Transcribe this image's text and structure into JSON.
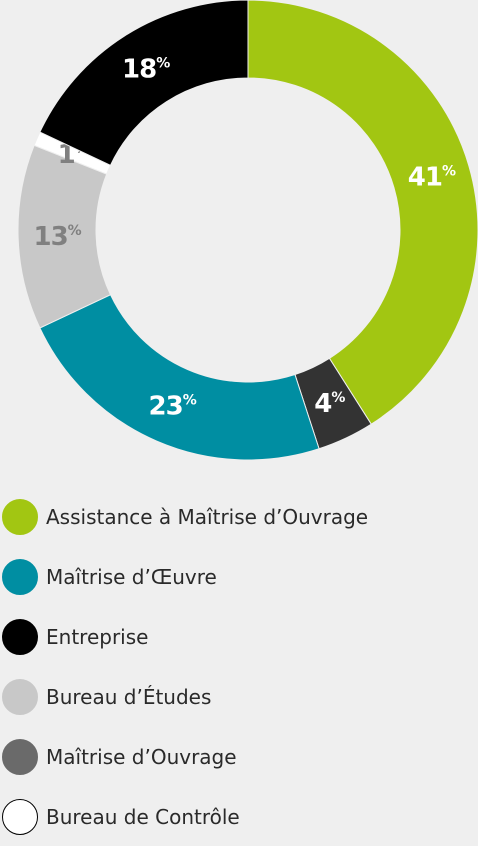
{
  "chart_data": {
    "type": "pie",
    "title": "",
    "categories": [
      "Assistance à Maîtrise d’Ouvrage",
      "Maîtrise d’Œuvre",
      "Entreprise",
      "Bureau d’Études",
      "Maîtrise d’Ouvrage",
      "Bureau de Contrôle"
    ],
    "slices": [
      {
        "name": "Assistance à Maîtrise d’Ouvrage",
        "value": 41,
        "label": "41",
        "unit": "%",
        "color": "#a2c612",
        "label_color": "#ffffff"
      },
      {
        "name": "Maîtrise d’Ouvrage",
        "value": 4,
        "label": "4",
        "unit": "%",
        "color": "#333333",
        "label_color": "#ffffff"
      },
      {
        "name": "Maîtrise d’Œuvre",
        "value": 23,
        "label": "23",
        "unit": "%",
        "color": "#008ea2",
        "label_color": "#ffffff"
      },
      {
        "name": "Bureau d’Études",
        "value": 13,
        "label": "13",
        "unit": "%",
        "color": "#c8c8c8",
        "label_color": "#808080"
      },
      {
        "name": "Bureau de Contrôle",
        "value": 1,
        "label": "1",
        "unit": "%",
        "color": "#ffffff",
        "label_color": "#808080"
      },
      {
        "name": "Entreprise",
        "value": 18,
        "label": "18",
        "unit": "%",
        "color": "#000000",
        "label_color": "#ffffff"
      }
    ],
    "style": "donut",
    "start_angle_deg": 0,
    "direction": "clockwise",
    "legend_position": "bottom"
  },
  "legend": {
    "items": [
      {
        "label": "Assistance à Maîtrise d’Ouvrage",
        "color": "#a2c612",
        "border": "#a2c612"
      },
      {
        "label": "Maîtrise d’Œuvre",
        "color": "#008ea2",
        "border": "#008ea2"
      },
      {
        "label": "Entreprise",
        "color": "#000000",
        "border": "#000000"
      },
      {
        "label": "Bureau d’Études",
        "color": "#c8c8c8",
        "border": "#c8c8c8"
      },
      {
        "label": "Maîtrise d’Ouvrage",
        "color": "#6a6a6a",
        "border": "#6a6a6a"
      },
      {
        "label": "Bureau de Contrôle",
        "color": "#ffffff",
        "border": "#000000"
      }
    ]
  },
  "colors": {
    "background": "#efefef",
    "text": "#2a2a2a"
  }
}
